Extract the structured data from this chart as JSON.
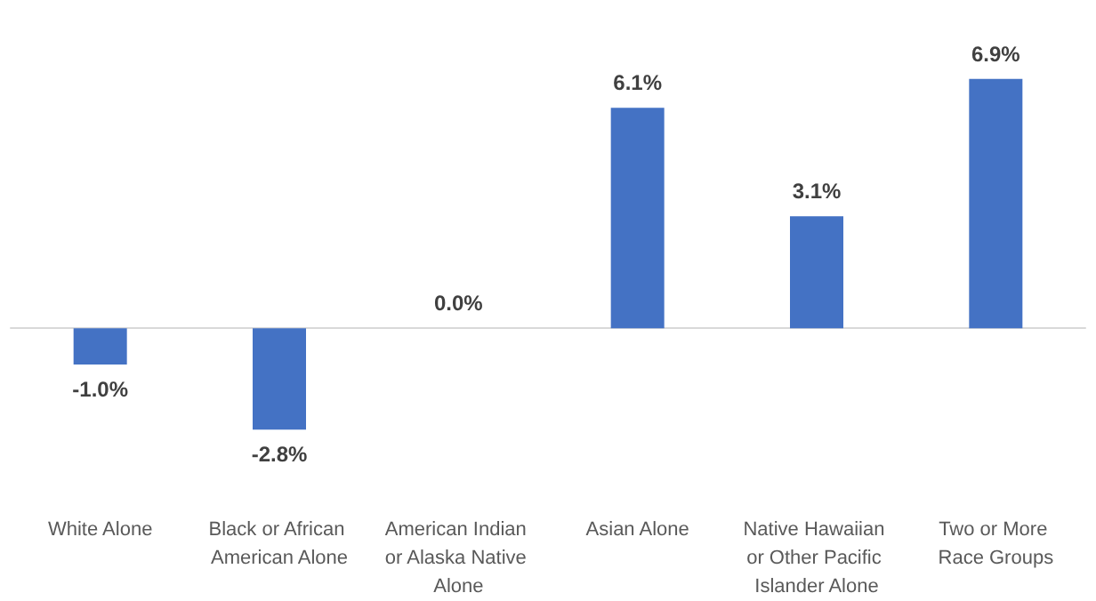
{
  "chart_data": {
    "type": "bar",
    "categories": [
      "White Alone",
      "Black or African American Alone",
      "American Indian or Alaska Native Alone",
      "Asian Alone",
      "Native Hawaiian or Other Pacific Islander Alone",
      "Two or More Race Groups"
    ],
    "values": [
      -1.0,
      -2.8,
      0.0,
      6.1,
      3.1,
      6.9
    ],
    "value_labels": [
      "-1.0%",
      "-2.8%",
      "0.0%",
      "6.1%",
      "3.1%",
      "6.9%"
    ],
    "color": "#4472c4"
  }
}
